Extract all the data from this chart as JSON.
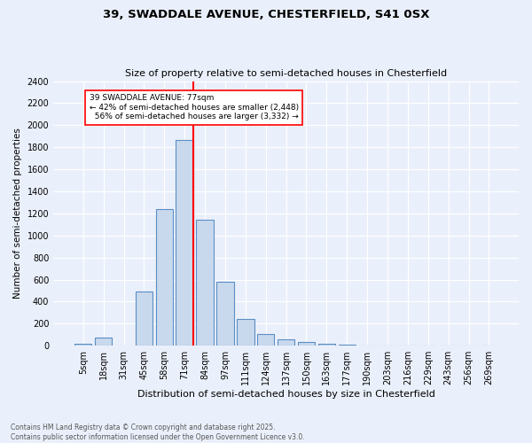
{
  "title1": "39, SWADDALE AVENUE, CHESTERFIELD, S41 0SX",
  "title2": "Size of property relative to semi-detached houses in Chesterfield",
  "xlabel": "Distribution of semi-detached houses by size in Chesterfield",
  "ylabel": "Number of semi-detached properties",
  "footer": "Contains HM Land Registry data © Crown copyright and database right 2025.\nContains public sector information licensed under the Open Government Licence v3.0.",
  "bar_labels": [
    "5sqm",
    "18sqm",
    "31sqm",
    "45sqm",
    "58sqm",
    "71sqm",
    "84sqm",
    "97sqm",
    "111sqm",
    "124sqm",
    "137sqm",
    "150sqm",
    "163sqm",
    "177sqm",
    "190sqm",
    "203sqm",
    "216sqm",
    "229sqm",
    "243sqm",
    "256sqm",
    "269sqm"
  ],
  "bar_values": [
    15,
    75,
    5,
    490,
    1240,
    1870,
    1140,
    580,
    240,
    110,
    60,
    35,
    20,
    10,
    5,
    0,
    0,
    0,
    0,
    0,
    0
  ],
  "bar_color": "#c9d9ed",
  "bar_edge_color": "#5b8ec4",
  "pct_smaller": 42,
  "pct_larger": 56,
  "n_smaller": 2448,
  "n_larger": 3332,
  "vline_color": "red",
  "ylim": [
    0,
    2400
  ],
  "yticks": [
    0,
    200,
    400,
    600,
    800,
    1000,
    1200,
    1400,
    1600,
    1800,
    2000,
    2200,
    2400
  ],
  "bg_color": "#eaf0fb",
  "plot_bg_color": "#eaf0fb",
  "grid_color": "#ffffff",
  "title1_fontsize": 9.5,
  "title2_fontsize": 8.0,
  "xlabel_fontsize": 8.0,
  "ylabel_fontsize": 7.5,
  "tick_fontsize": 7.0,
  "footer_fontsize": 5.5,
  "ann_fontsize": 6.5,
  "vline_x": 5.42
}
